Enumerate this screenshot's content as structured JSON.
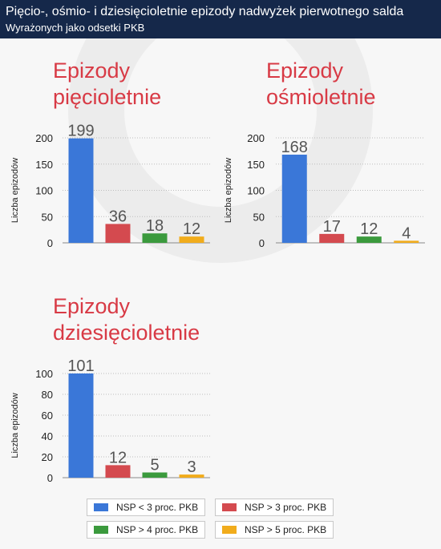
{
  "header": {
    "title": "Pięcio-, ośmio- i dziesięcioletnie epizody nadwyżek pierwotnego salda",
    "subtitle": "Wyrażonych jako odsetki PKB"
  },
  "colors": {
    "header_bg": "#15284a",
    "title_red": "#d83a45",
    "blue": "#3a77d8",
    "red": "#d44a4f",
    "green": "#3b9a3d",
    "orange": "#f1ac1c"
  },
  "legend": [
    {
      "label": "NSP < 3 proc. PKB",
      "color": "#3a77d8"
    },
    {
      "label": "NSP > 3 proc. PKB",
      "color": "#d44a4f"
    },
    {
      "label": "NSP > 4 proc. PKB",
      "color": "#3b9a3d"
    },
    {
      "label": "NSP > 5 proc. PKB",
      "color": "#f1ac1c"
    }
  ],
  "chart_data": [
    {
      "type": "bar",
      "title_lines": [
        "Epizody",
        "pięcioletnie"
      ],
      "ylabel": "Liczba epizodów",
      "yticks": [
        0,
        50,
        100,
        150,
        200
      ],
      "ylim": [
        0,
        200
      ],
      "grid": true,
      "series": [
        {
          "name": "NSP < 3 proc. PKB",
          "value": 199
        },
        {
          "name": "NSP > 3 proc. PKB",
          "value": 36
        },
        {
          "name": "NSP > 4 proc. PKB",
          "value": 18
        },
        {
          "name": "NSP > 5 proc. PKB",
          "value": 12
        }
      ]
    },
    {
      "type": "bar",
      "title_lines": [
        "Epizody",
        "ośmioletnie"
      ],
      "ylabel": "Liczba epizodów",
      "yticks": [
        0,
        50,
        100,
        150,
        200
      ],
      "ylim": [
        0,
        200
      ],
      "grid": true,
      "series": [
        {
          "name": "NSP < 3 proc. PKB",
          "value": 168
        },
        {
          "name": "NSP > 3 proc. PKB",
          "value": 17
        },
        {
          "name": "NSP > 4 proc. PKB",
          "value": 12
        },
        {
          "name": "NSP > 5 proc. PKB",
          "value": 4
        }
      ]
    },
    {
      "type": "bar",
      "title_lines": [
        "Epizody",
        "dziesięcioletnie"
      ],
      "ylabel": "Liczba epizodów",
      "yticks": [
        0,
        20,
        40,
        60,
        80,
        100
      ],
      "ylim": [
        0,
        100
      ],
      "grid": true,
      "series": [
        {
          "name": "NSP < 3 proc. PKB",
          "value": 101
        },
        {
          "name": "NSP > 3 proc. PKB",
          "value": 12
        },
        {
          "name": "NSP > 4 proc. PKB",
          "value": 5
        },
        {
          "name": "NSP > 5 proc. PKB",
          "value": 3
        }
      ]
    }
  ]
}
